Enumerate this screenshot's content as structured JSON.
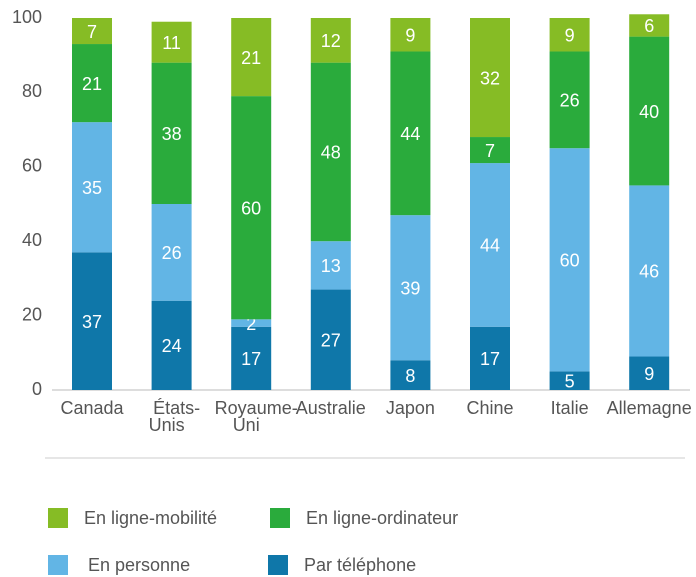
{
  "chart_data": {
    "type": "stacked_bar",
    "categories": [
      "Canada",
      "États-Unis",
      "Royaume-Uni",
      "Australie",
      "Japon",
      "Chine",
      "Italie",
      "Allemagne"
    ],
    "series": [
      {
        "name": "Par téléphone",
        "color": "#0f77a9",
        "values": [
          37,
          24,
          17,
          27,
          8,
          17,
          5,
          9
        ]
      },
      {
        "name": "En personne",
        "color": "#62b5e5",
        "values": [
          35,
          26,
          2,
          13,
          39,
          44,
          60,
          46
        ]
      },
      {
        "name": "En ligne-ordinateur",
        "color": "#2aab3c",
        "values": [
          21,
          38,
          60,
          48,
          44,
          7,
          26,
          40
        ]
      },
      {
        "name": "En ligne-mobilité",
        "color": "#86bc25",
        "values": [
          7,
          11,
          21,
          12,
          9,
          32,
          9,
          6
        ]
      }
    ],
    "ylim": [
      0,
      100
    ],
    "yticks": [
      0,
      20,
      40,
      60,
      80,
      100
    ],
    "grid": false
  }
}
